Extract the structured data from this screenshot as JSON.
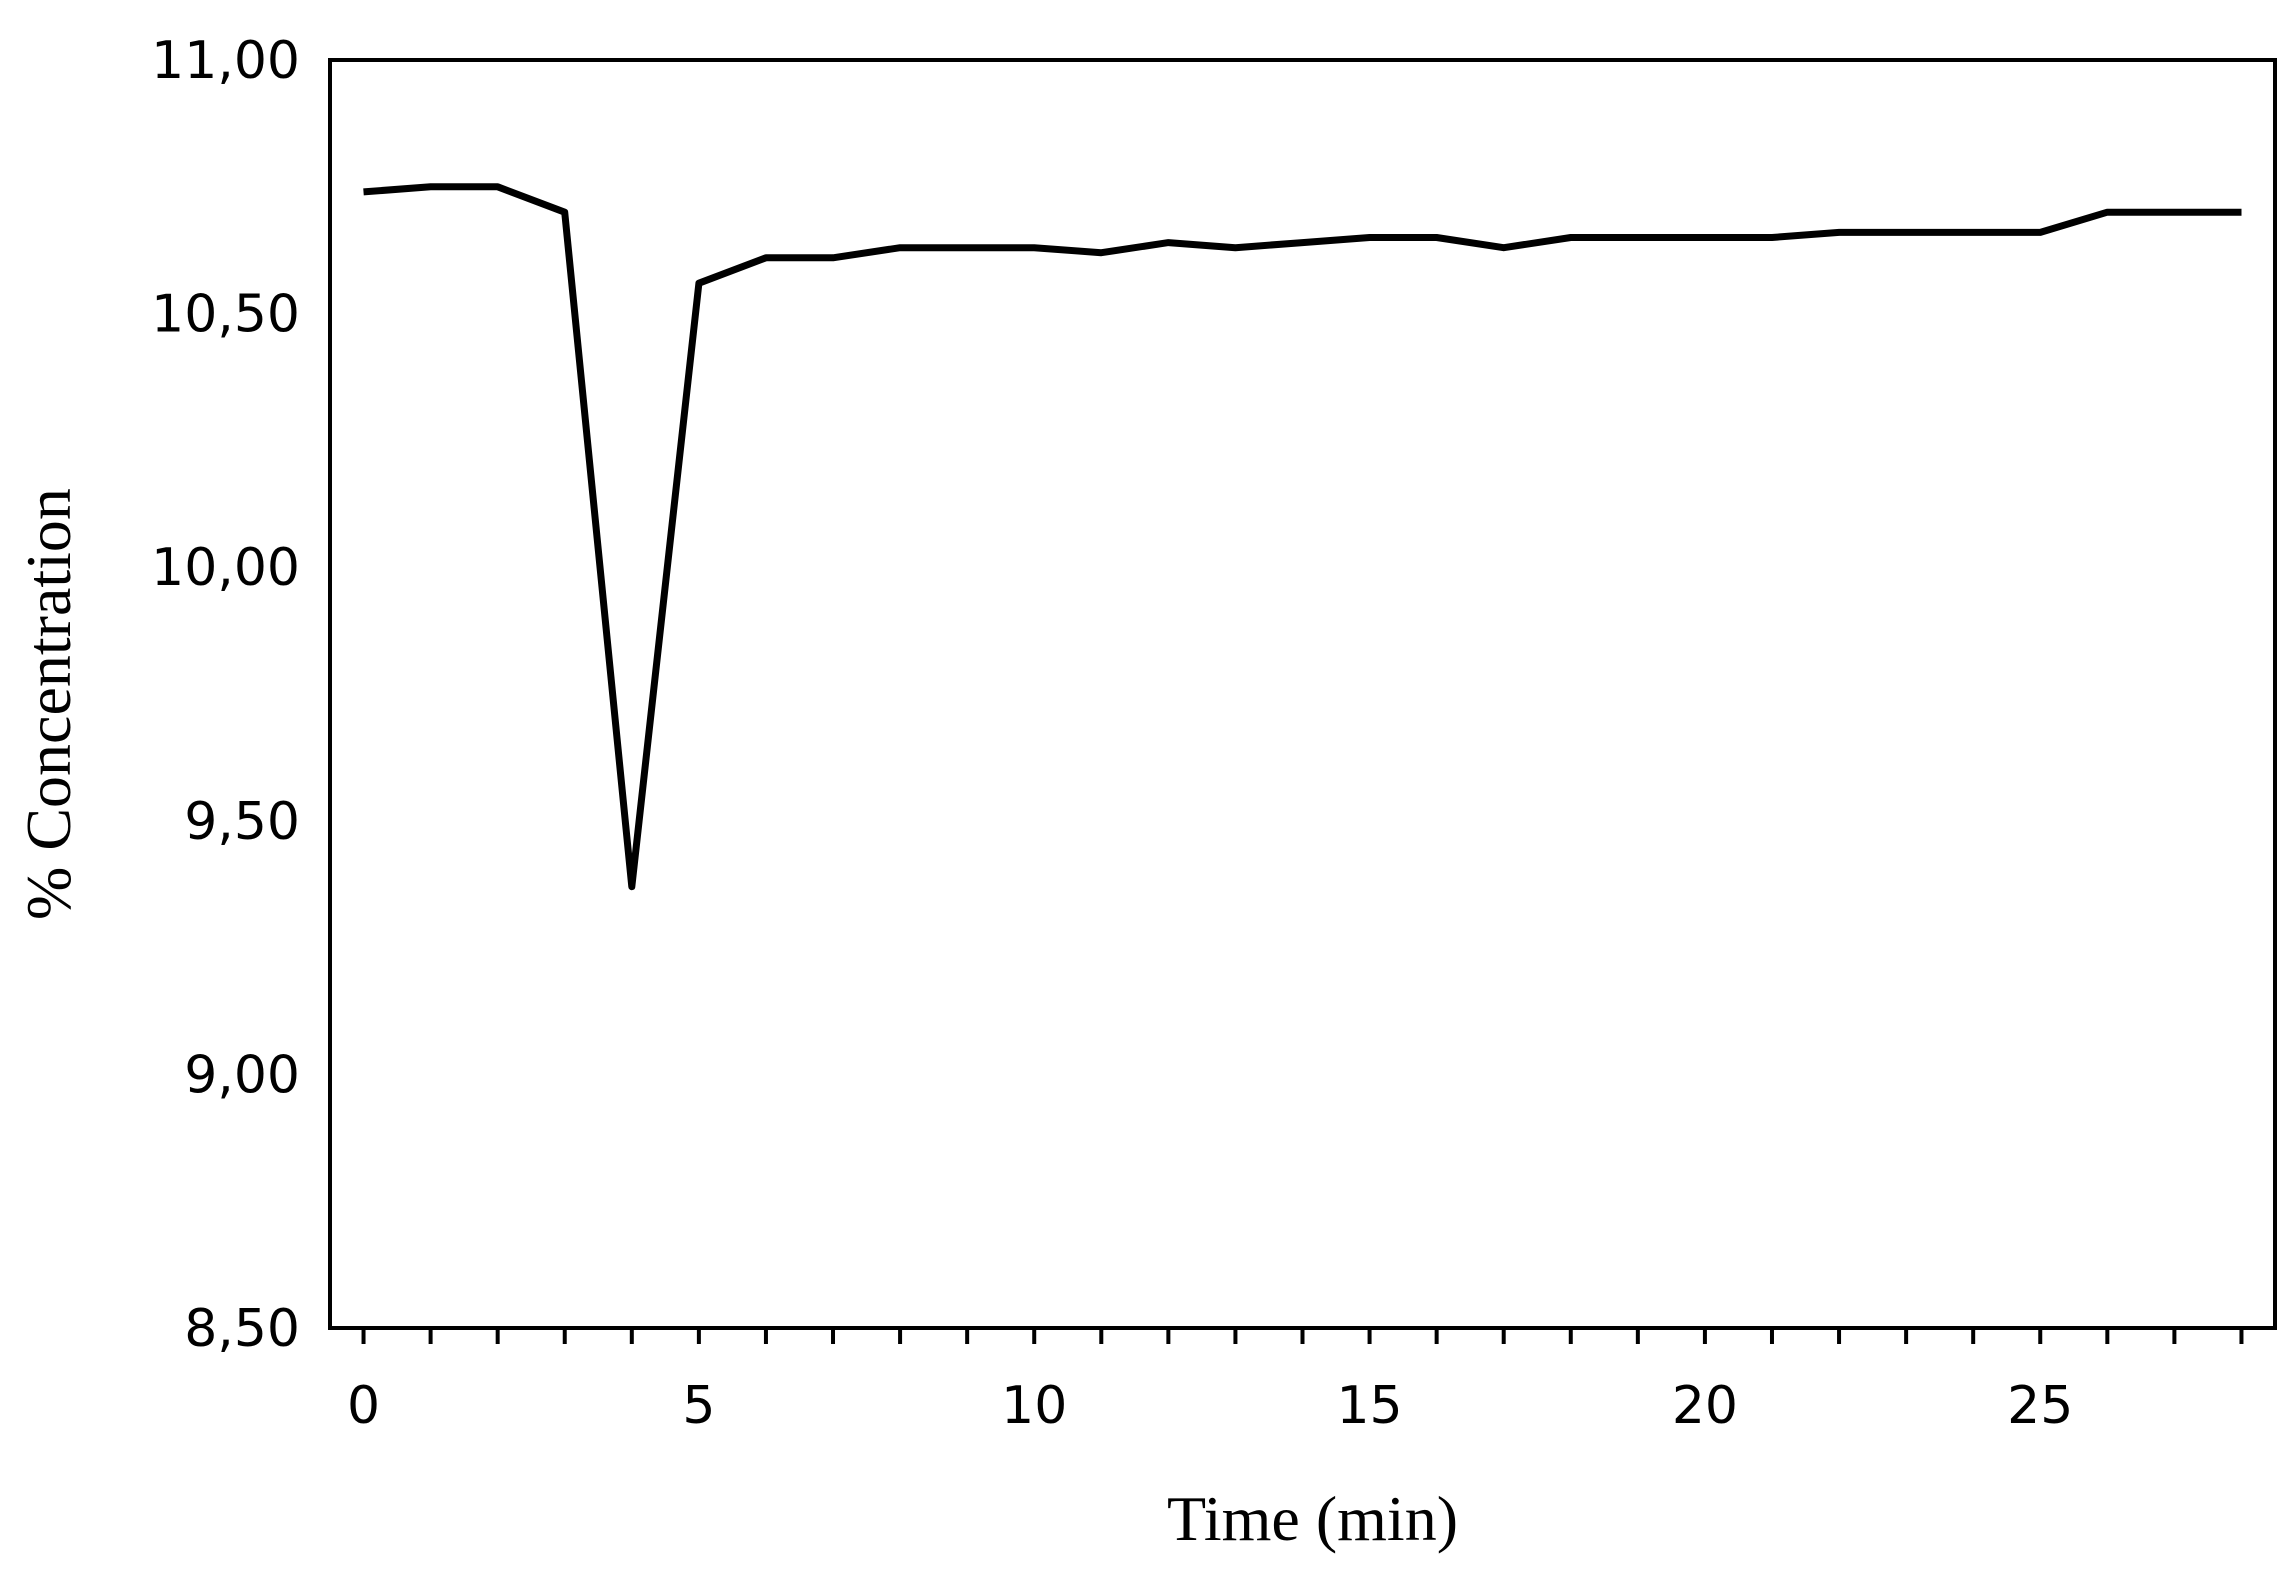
{
  "chart_data": {
    "type": "line",
    "title": "",
    "xlabel": "Time (min)",
    "ylabel": "% Concentration",
    "xlim": [
      -0.5,
      28.5
    ],
    "ylim": [
      8.5,
      11.0
    ],
    "xticks": [
      0,
      5,
      10,
      15,
      20,
      25
    ],
    "xtick_labels": [
      "0",
      "5",
      "10",
      "15",
      "20",
      "25"
    ],
    "xminor_step": 1,
    "yticks": [
      8.5,
      9.0,
      9.5,
      10.0,
      10.5,
      11.0
    ],
    "ytick_labels": [
      "8,50",
      "9,00",
      "9,50",
      "10,00",
      "10,50",
      "11,00"
    ],
    "grid": false,
    "legend": "none",
    "line_color": "#000000",
    "series": [
      {
        "x": [
          0,
          1,
          2,
          3,
          4,
          5,
          6,
          7,
          8,
          9,
          10,
          11,
          12,
          13,
          14,
          15,
          16,
          17,
          18,
          19,
          20,
          21,
          22,
          23,
          24,
          25,
          26,
          27,
          28
        ],
        "values": [
          10.74,
          10.75,
          10.75,
          10.7,
          9.37,
          10.56,
          10.61,
          10.61,
          10.63,
          10.63,
          10.63,
          10.62,
          10.64,
          10.63,
          10.64,
          10.65,
          10.65,
          10.63,
          10.65,
          10.65,
          10.65,
          10.65,
          10.66,
          10.66,
          10.66,
          10.66,
          10.7,
          10.7,
          10.7
        ]
      }
    ]
  }
}
